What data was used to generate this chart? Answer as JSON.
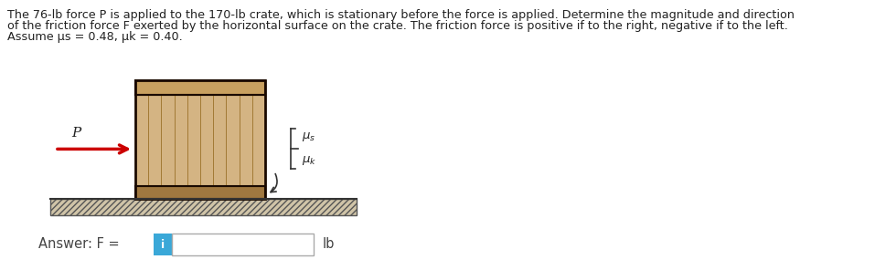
{
  "bg_color": "#ffffff",
  "crate_face_color": "#d4b483",
  "crate_edge_color": "#1a0a00",
  "crate_top_color": "#c8a060",
  "crate_bottom_color": "#a07840",
  "ground_color": "#c8b89a",
  "ground_edge_color": "#555555",
  "arrow_color": "#cc0000",
  "icon_color": "#3aa8d8",
  "font_size_main": 9.2,
  "text_lines": [
    "The 76-lb force P is applied to the 170-lb crate, which is stationary before the force is applied. Determine the magnitude and direction",
    "of the friction force F exerted by the horizontal surface on the crate. The friction force is positive if to the right, negative if to the left.",
    "Assume μs = 0.48, μk = 0.40."
  ]
}
